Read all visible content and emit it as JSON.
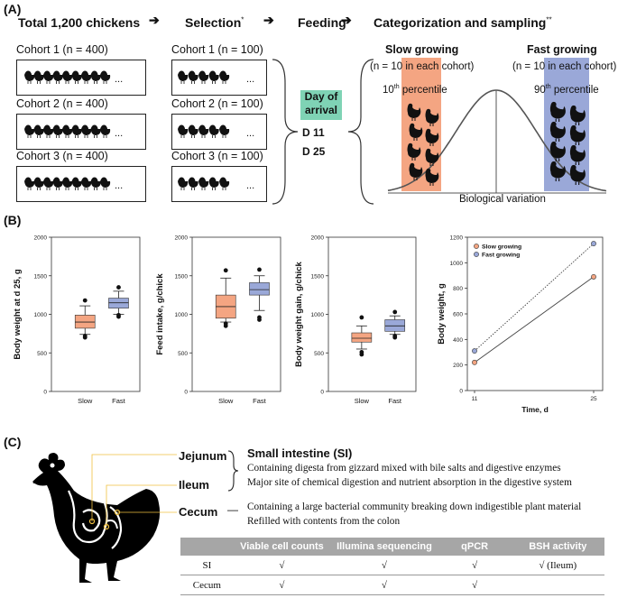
{
  "panelA": {
    "label": "(A)",
    "step1": "Total 1,200 chickens",
    "step2": "Selection",
    "step2_mark": "*",
    "step3": "Feeding",
    "step4": "Categorization and sampling",
    "step4_mark": "**",
    "cohorts_total": [
      "Cohort 1 (n = 400)",
      "Cohort 2 (n = 400)",
      "Cohort 3 (n = 400)"
    ],
    "cohorts_selected": [
      "Cohort 1 (n = 100)",
      "Cohort 2 (n = 100)",
      "Cohort 3 (n = 100)"
    ],
    "ellipsis": "...",
    "arrival_line1": "Day of",
    "arrival_line2": "arrival",
    "day11": "D 11",
    "day25": "D 25",
    "slow_title": "Slow growing",
    "fast_title": "Fast growing",
    "slow_n": "(n = 10 in each cohort)",
    "fast_n": "(n = 10 in each cohort)",
    "slow_pct": "10th percentile",
    "fast_pct": "90th percentile",
    "slow_pct_num": "10",
    "fast_pct_num": "90",
    "pct_sup": "th",
    "pct_word": " percentile",
    "bio_var": "Biological variation",
    "colors": {
      "slow": "#f4a582",
      "fast": "#9aa8d8",
      "arrival": "#7fd3b5"
    }
  },
  "panelB": {
    "label": "(B)",
    "chart_data": [
      {
        "type": "box",
        "ylabel": "Body weight at d 25, g",
        "categories": [
          "Slow",
          "Fast"
        ],
        "ylim": [
          0,
          2000
        ],
        "yticks": [
          "0",
          "500",
          "1000",
          "1500",
          "2000"
        ],
        "boxes": [
          {
            "name": "Slow",
            "whisker_low": 740,
            "q1": 820,
            "median": 900,
            "q3": 990,
            "whisker_high": 1110,
            "outliers": [
              700,
              720,
              1180
            ]
          },
          {
            "name": "Fast",
            "whisker_low": 1000,
            "q1": 1080,
            "median": 1150,
            "q3": 1210,
            "whisker_high": 1300,
            "outliers": [
              970,
              990,
              1350
            ]
          }
        ]
      },
      {
        "type": "box",
        "ylabel": "Feed intake, g/chick",
        "categories": [
          "Slow",
          "Fast"
        ],
        "ylim": [
          0,
          2000
        ],
        "yticks": [
          "0",
          "500",
          "1000",
          "1500",
          "2000"
        ],
        "boxes": [
          {
            "name": "Slow",
            "whisker_low": 900,
            "q1": 950,
            "median": 1100,
            "q3": 1250,
            "whisker_high": 1470,
            "outliers": [
              850,
              880,
              1570
            ]
          },
          {
            "name": "Fast",
            "whisker_low": 1050,
            "q1": 1250,
            "median": 1320,
            "q3": 1410,
            "whisker_high": 1500,
            "outliers": [
              930,
              960,
              1580
            ]
          }
        ]
      },
      {
        "type": "box",
        "ylabel": "Body weight gain, g/chick",
        "categories": [
          "Slow",
          "Fast"
        ],
        "ylim": [
          0,
          2000
        ],
        "yticks": [
          "0",
          "500",
          "1000",
          "1500",
          "2000"
        ],
        "boxes": [
          {
            "name": "Slow",
            "whisker_low": 550,
            "q1": 640,
            "median": 690,
            "q3": 760,
            "whisker_high": 850,
            "outliers": [
              480,
              510,
              960
            ]
          },
          {
            "name": "Fast",
            "whisker_low": 740,
            "q1": 780,
            "median": 850,
            "q3": 930,
            "whisker_high": 980,
            "outliers": [
              700,
              720,
              1030
            ]
          }
        ]
      },
      {
        "type": "line",
        "ylabel": "Body weight, g",
        "xlabel": "Time, d",
        "x": [
          11,
          25
        ],
        "xticks": [
          "11",
          "25"
        ],
        "ylim": [
          0,
          1200
        ],
        "yticks": [
          "0",
          "200",
          "400",
          "600",
          "800",
          "1000",
          "1200"
        ],
        "legend": "top-left",
        "series": [
          {
            "name": "Slow growing",
            "values": [
              220,
              890
            ],
            "color": "#f4a582",
            "line": "solid"
          },
          {
            "name": "Fast growing",
            "values": [
              310,
              1150
            ],
            "color": "#9aa8d8",
            "line": "dotted"
          }
        ]
      }
    ]
  },
  "panelC": {
    "label": "(C)",
    "jejunum": "Jejunum",
    "ileum": "Ileum",
    "cecum": "Cecum",
    "si_title": "Small intestine (SI)",
    "si_line1": "Containing digesta from gizzard mixed with bile salts and digestive enzymes",
    "si_line2": "Major site of chemical digestion and nutrient absorption in the digestive system",
    "dash": "—",
    "cecum_line1": "Containing a large bacterial community breaking down indigestible plant material",
    "cecum_line2": "Refilled with contents from the colon",
    "table": {
      "headers": [
        "",
        "Viable cell counts",
        "Illumina sequencing",
        "qPCR",
        "BSH activity"
      ],
      "rows": [
        [
          "SI",
          "√",
          "√",
          "√",
          "√ (Ileum)"
        ],
        [
          "Cecum",
          "√",
          "√",
          "√",
          ""
        ]
      ]
    }
  }
}
